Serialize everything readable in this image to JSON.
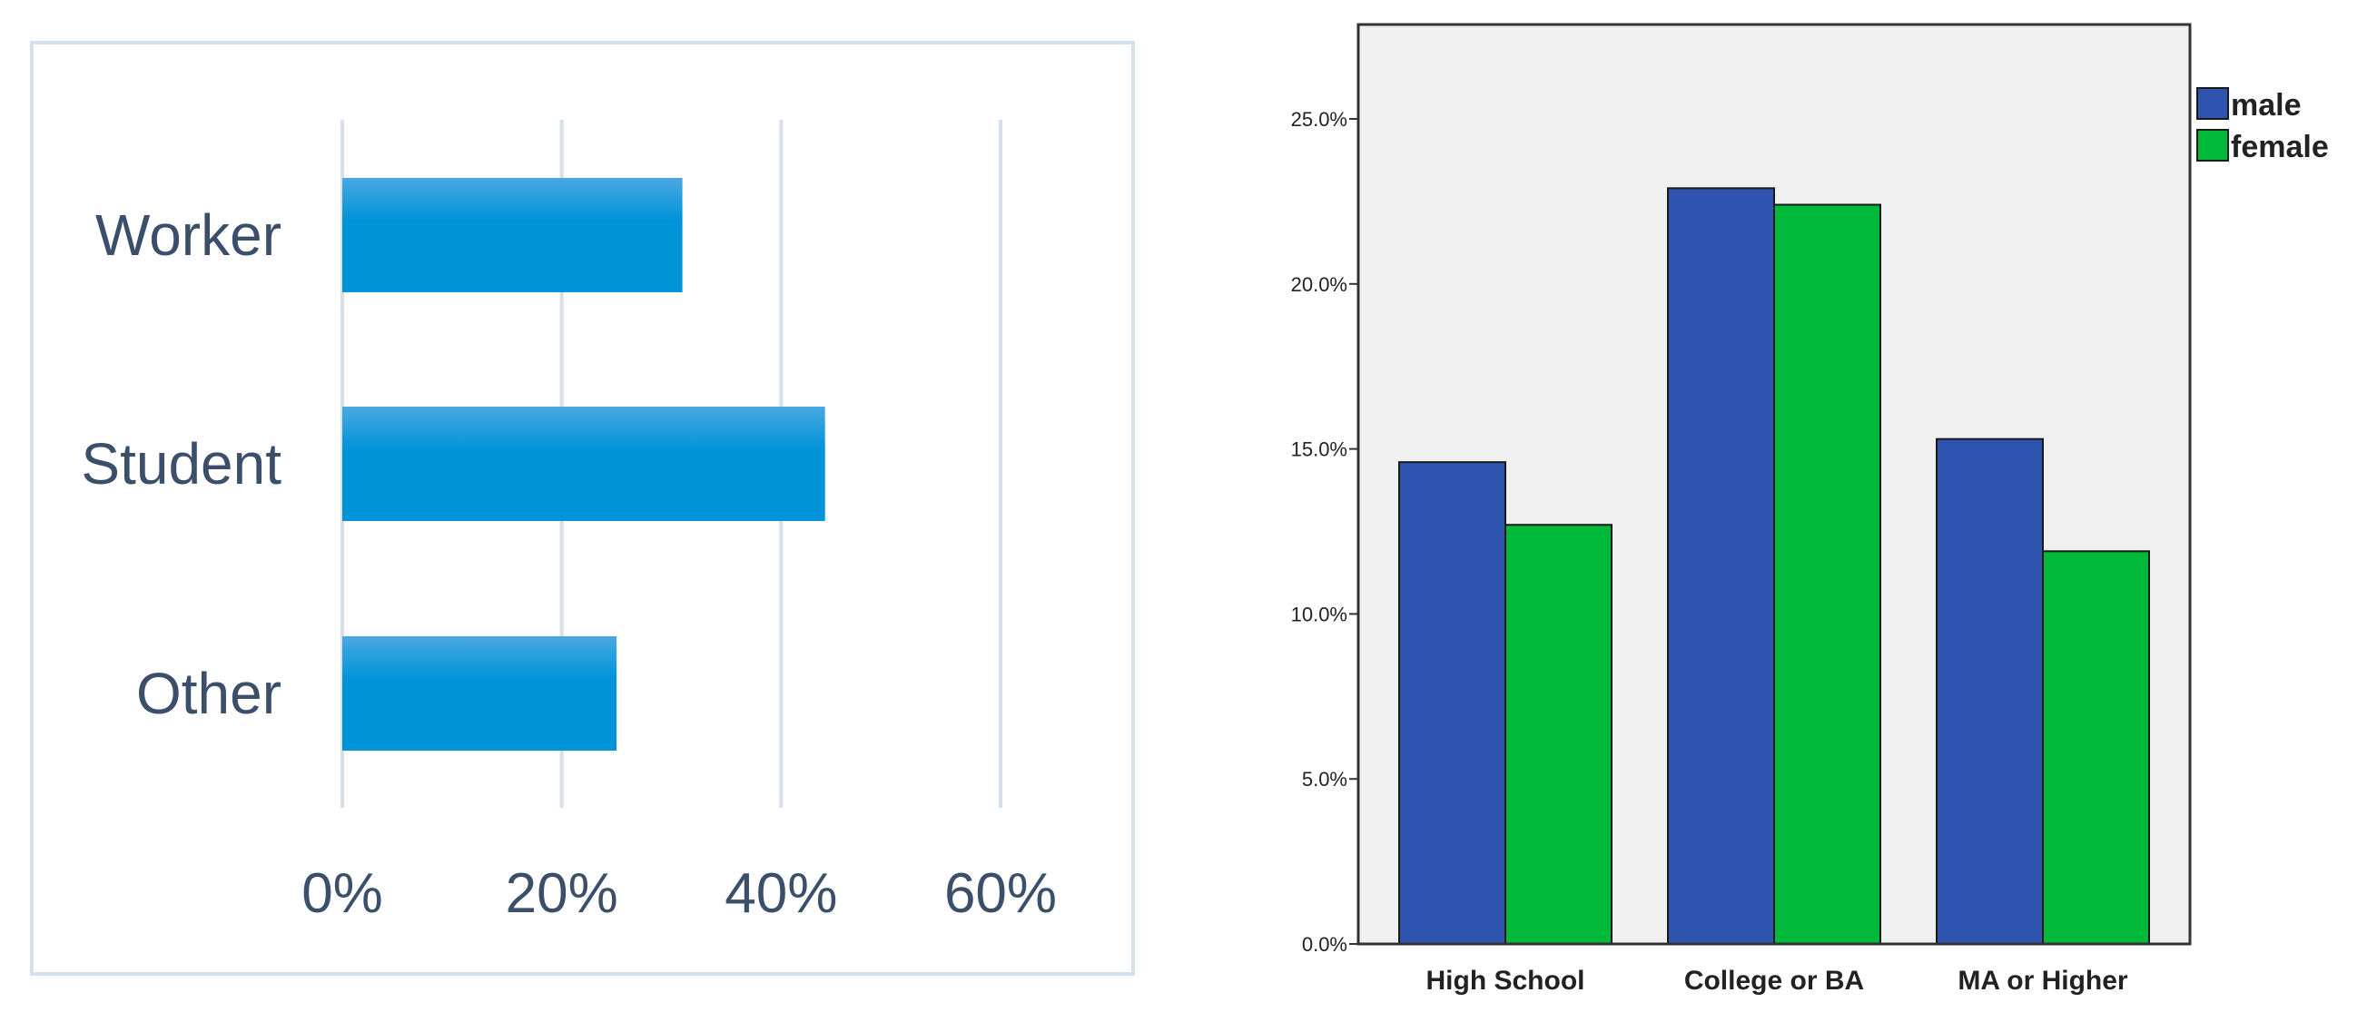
{
  "chart_data": [
    {
      "type": "bar",
      "orientation": "horizontal",
      "categories": [
        "Worker",
        "Student",
        "Other"
      ],
      "values": [
        31,
        44,
        25
      ],
      "value_unit": "%",
      "xticks": [
        "0%",
        "20%",
        "40%",
        "60%"
      ],
      "xlim": [
        0,
        60
      ],
      "grid": true,
      "colors": {
        "bar_top": "#4aa8e2",
        "bar_bottom": "#0093d8",
        "grid": "#d6dfea",
        "frame": "#d6e0ea",
        "text": "#3b4f6b"
      }
    },
    {
      "type": "bar",
      "orientation": "vertical",
      "categories": [
        "High School",
        "College or BA",
        "MA or Higher"
      ],
      "series": [
        {
          "name": "male",
          "values": [
            14.6,
            22.9,
            15.3
          ]
        },
        {
          "name": "female",
          "values": [
            12.7,
            22.4,
            11.9
          ]
        }
      ],
      "value_unit": "%",
      "yticks": [
        "0.0%",
        "5.0%",
        "10.0%",
        "15.0%",
        "20.0%",
        "25.0%"
      ],
      "ylim": [
        0,
        27.9
      ],
      "grid": false,
      "legend_position": "top-right",
      "colors": {
        "male": "#2f54b0",
        "female": "#00b83a",
        "plot_background": "#f0f0f0",
        "frame": "#333333",
        "text": "#222222"
      }
    }
  ]
}
